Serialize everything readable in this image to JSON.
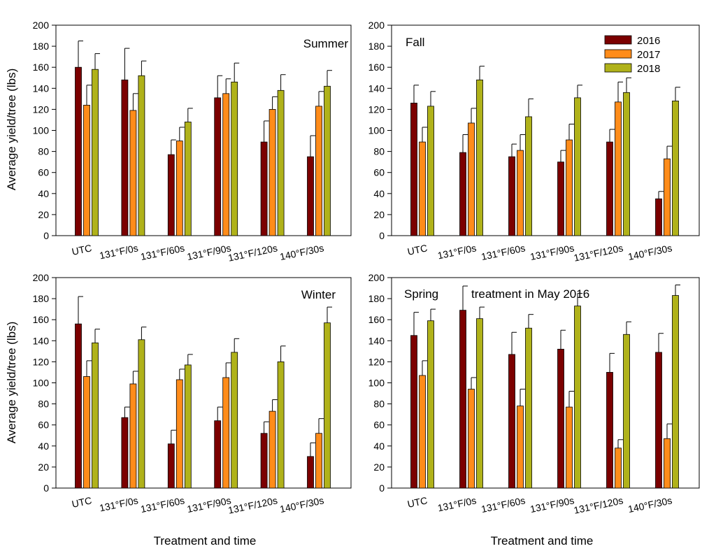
{
  "figure": {
    "xlabel": "Treatment and time",
    "ylabel": "Average yield/tree (lbs)",
    "series_colors": [
      "#7b0000",
      "#ff8c1a",
      "#b0b21a"
    ]
  },
  "legend": {
    "items": [
      "2016",
      "2017",
      "2018"
    ],
    "placement": "top-right of Fall panel"
  },
  "chart_data": [
    {
      "type": "bar",
      "title": "Summer",
      "categories": [
        "UTC",
        "131°F/0s",
        "131°F/60s",
        "131°F/90s",
        "131°F/120s",
        "140°F/30s"
      ],
      "series": [
        {
          "name": "2016",
          "values": [
            160,
            148,
            77,
            131,
            89,
            75
          ],
          "errors": [
            25,
            30,
            14,
            21,
            20,
            20
          ]
        },
        {
          "name": "2017",
          "values": [
            124,
            119,
            90,
            135,
            120,
            123
          ],
          "errors": [
            19,
            16,
            13,
            14,
            12,
            14
          ]
        },
        {
          "name": "2018",
          "values": [
            158,
            152,
            108,
            146,
            138,
            142
          ],
          "errors": [
            15,
            14,
            13,
            18,
            15,
            15
          ]
        }
      ],
      "ylim": [
        0,
        200
      ],
      "yticks": [
        0,
        20,
        40,
        60,
        80,
        100,
        120,
        140,
        160,
        180,
        200
      ]
    },
    {
      "type": "bar",
      "title": "Fall",
      "categories": [
        "UTC",
        "131°F/0s",
        "131°F/60s",
        "131°F/90s",
        "131°F/120s",
        "140°F/30s"
      ],
      "series": [
        {
          "name": "2016",
          "values": [
            126,
            79,
            75,
            70,
            89,
            35
          ],
          "errors": [
            17,
            17,
            12,
            11,
            12,
            7
          ]
        },
        {
          "name": "2017",
          "values": [
            89,
            107,
            81,
            91,
            127,
            73
          ],
          "errors": [
            14,
            14,
            15,
            15,
            19,
            12
          ]
        },
        {
          "name": "2018",
          "values": [
            123,
            148,
            113,
            131,
            136,
            128
          ],
          "errors": [
            14,
            13,
            17,
            12,
            14,
            13
          ]
        }
      ],
      "ylim": [
        0,
        200
      ],
      "yticks": [
        0,
        20,
        40,
        60,
        80,
        100,
        120,
        140,
        160,
        180,
        200
      ]
    },
    {
      "type": "bar",
      "title": "Winter",
      "categories": [
        "UTC",
        "131°F/0s",
        "131°F/60s",
        "131°F/90s",
        "131°F/120s",
        "140°F/30s"
      ],
      "series": [
        {
          "name": "2016",
          "values": [
            156,
            67,
            42,
            64,
            52,
            30
          ],
          "errors": [
            26,
            10,
            13,
            13,
            11,
            13
          ]
        },
        {
          "name": "2017",
          "values": [
            106,
            99,
            103,
            105,
            73,
            52
          ],
          "errors": [
            15,
            12,
            10,
            14,
            11,
            14
          ]
        },
        {
          "name": "2018",
          "values": [
            138,
            141,
            117,
            129,
            120,
            157
          ],
          "errors": [
            13,
            12,
            10,
            13,
            15,
            15
          ]
        }
      ],
      "ylim": [
        0,
        200
      ],
      "yticks": [
        0,
        20,
        40,
        60,
        80,
        100,
        120,
        140,
        160,
        180,
        200
      ]
    },
    {
      "type": "bar",
      "title": "Spring",
      "annotation": "treatment in May    2016",
      "categories": [
        "UTC",
        "131°F/0s",
        "131°F/60s",
        "131°F/90s",
        "131°F/120s",
        "140°F/30s"
      ],
      "series": [
        {
          "name": "2016",
          "values": [
            145,
            169,
            127,
            132,
            110,
            129
          ],
          "errors": [
            22,
            23,
            21,
            18,
            18,
            18
          ]
        },
        {
          "name": "2017",
          "values": [
            107,
            94,
            78,
            77,
            38,
            47
          ],
          "errors": [
            14,
            11,
            16,
            15,
            8,
            14
          ]
        },
        {
          "name": "2018",
          "values": [
            159,
            161,
            152,
            173,
            146,
            183
          ],
          "errors": [
            11,
            11,
            13,
            12,
            12,
            10
          ]
        }
      ],
      "ylim": [
        0,
        200
      ],
      "yticks": [
        0,
        20,
        40,
        60,
        80,
        100,
        120,
        140,
        160,
        180,
        200
      ]
    }
  ]
}
